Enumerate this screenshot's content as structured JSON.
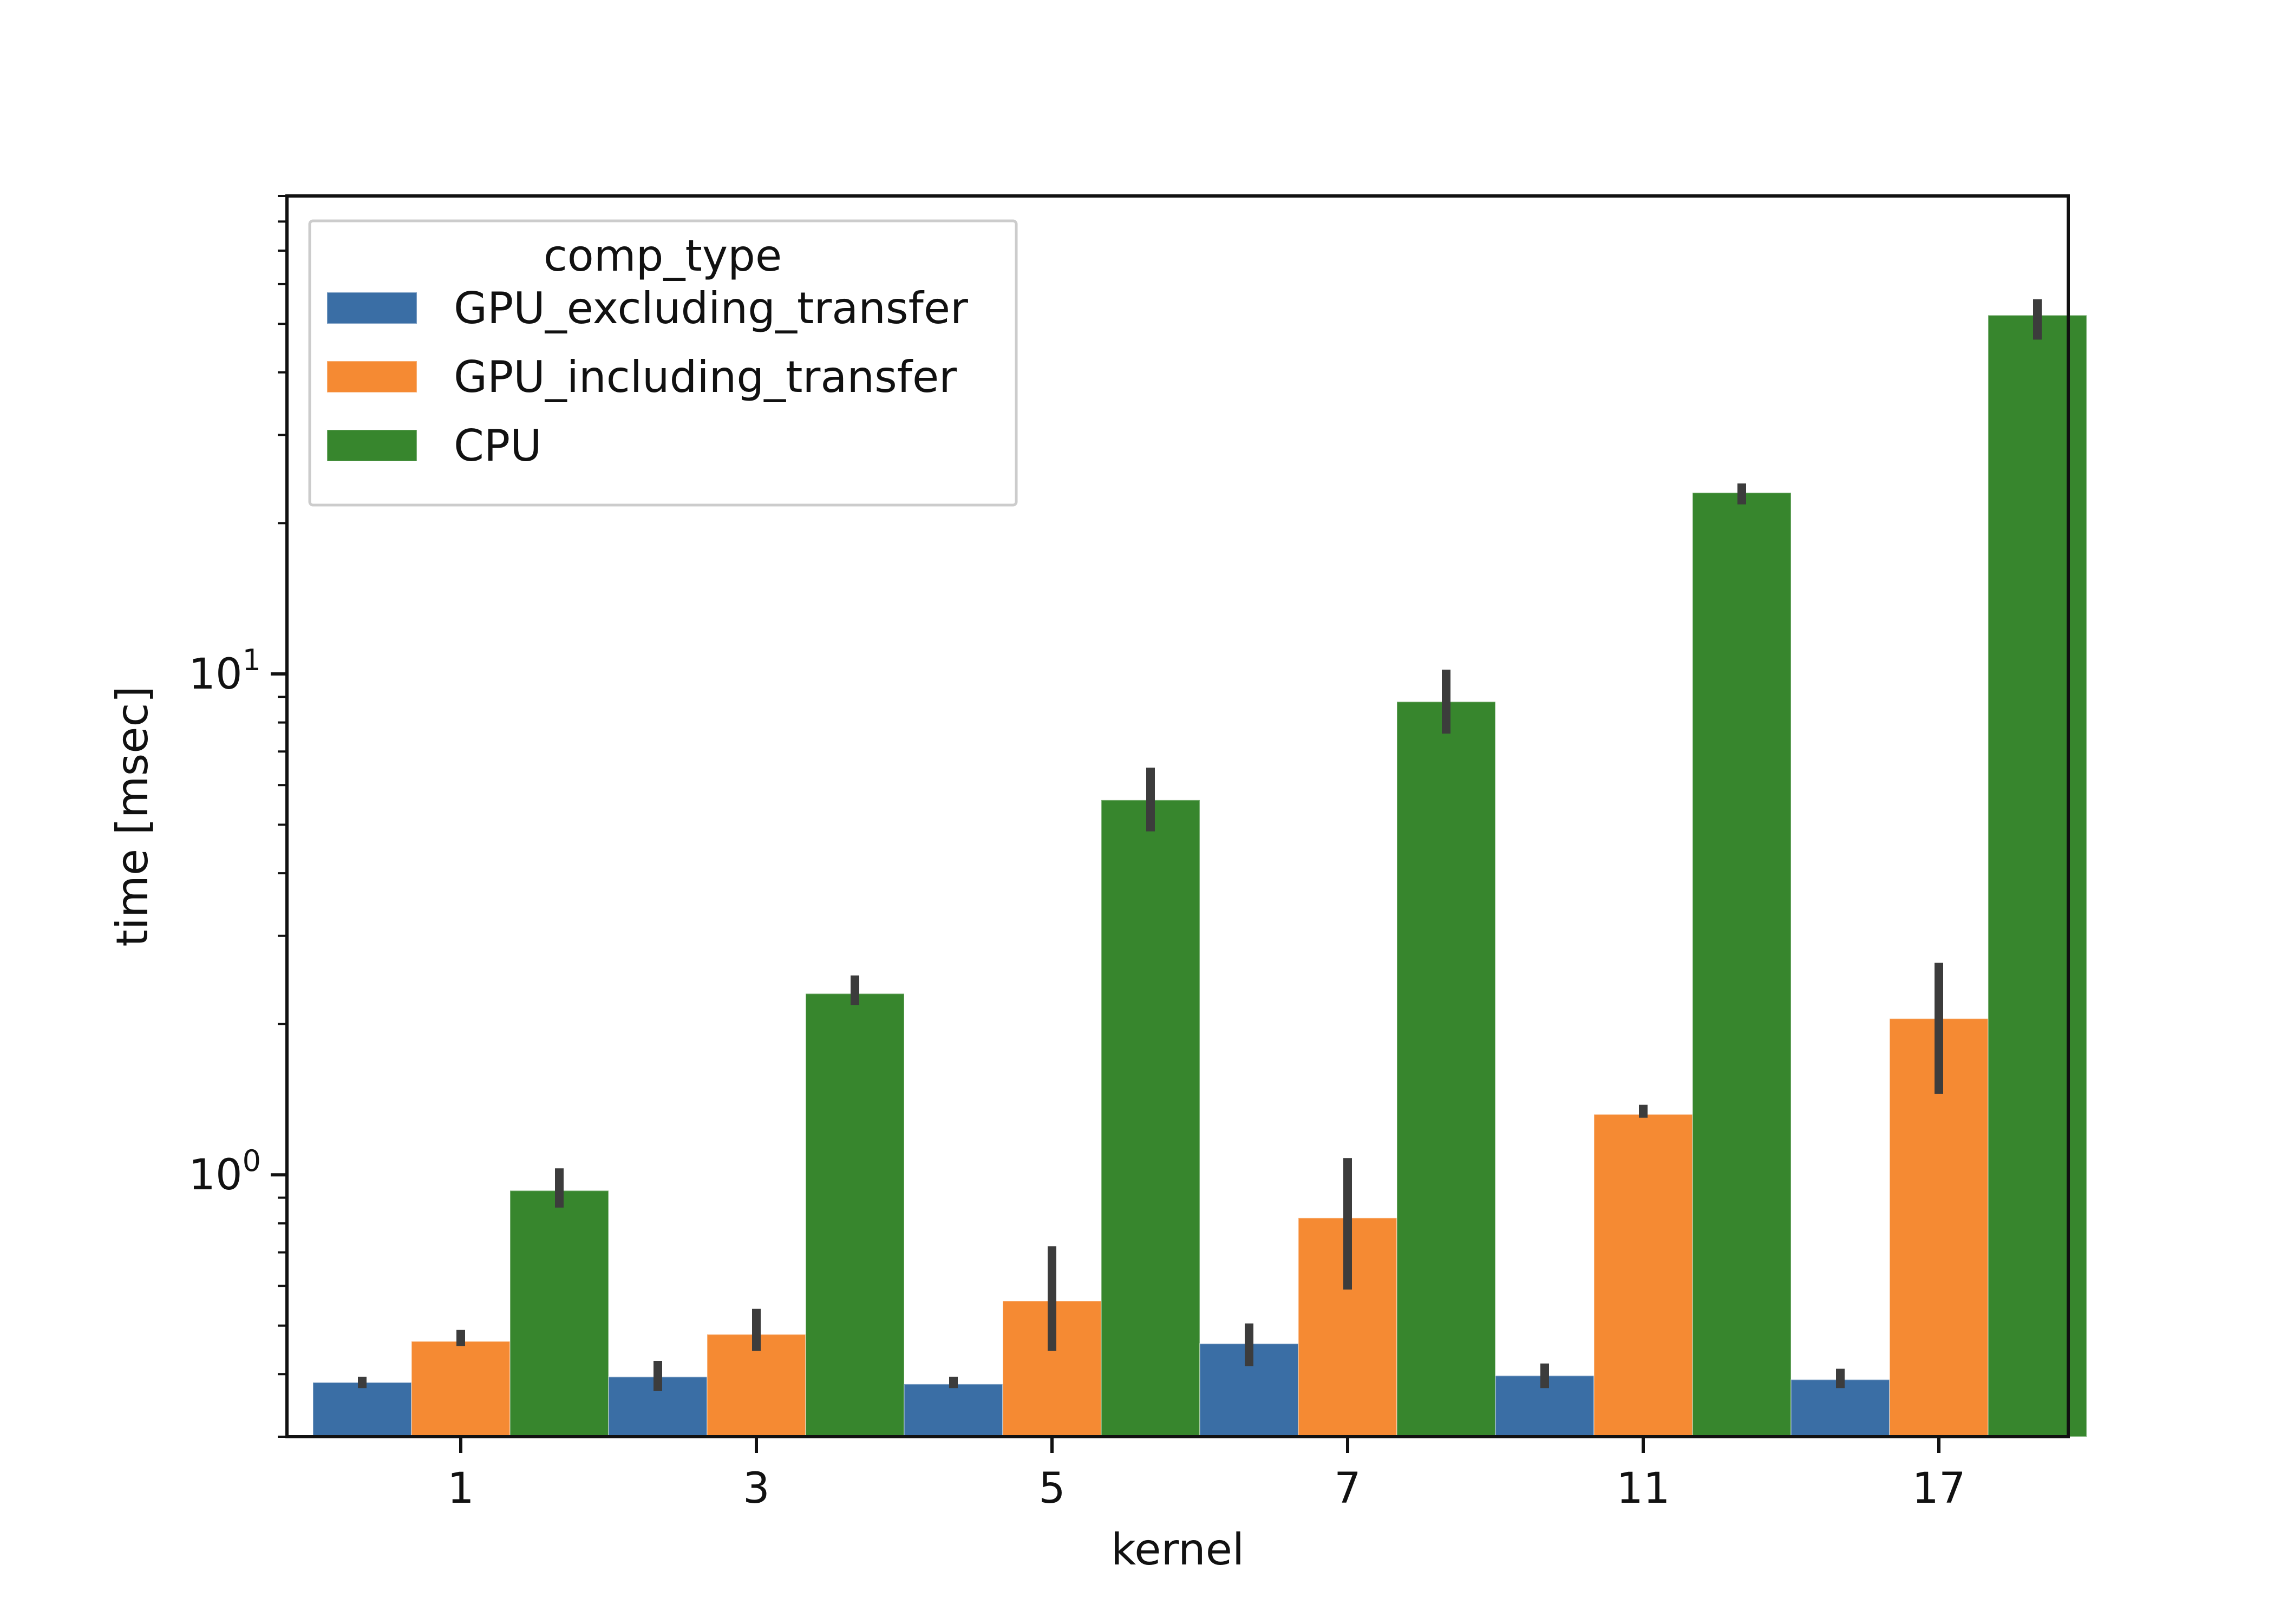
{
  "chart_data": {
    "type": "bar",
    "xlabel": "kernel",
    "ylabel": "time [msec]",
    "yscale": "log",
    "ylim": [
      0.3,
      90
    ],
    "y_ticks": [
      {
        "value": 1,
        "base": "10",
        "exp": "0"
      },
      {
        "value": 10,
        "base": "10",
        "exp": "1"
      }
    ],
    "categories": [
      "1",
      "3",
      "5",
      "7",
      "11",
      "17"
    ],
    "legend": {
      "title": "comp_type",
      "placement": "upper-left"
    },
    "grid": false,
    "series": [
      {
        "name": "GPU_excluding_transfer",
        "color": "#3a6ea5",
        "values": [
          0.385,
          0.395,
          0.382,
          0.46,
          0.397,
          0.39
        ],
        "error_low": [
          0.375,
          0.37,
          0.375,
          0.415,
          0.375,
          0.375
        ],
        "error_high": [
          0.395,
          0.425,
          0.395,
          0.505,
          0.42,
          0.41
        ]
      },
      {
        "name": "GPU_including_transfer",
        "color": "#f58a33",
        "values": [
          0.465,
          0.48,
          0.56,
          0.82,
          1.32,
          2.05
        ],
        "error_low": [
          0.455,
          0.445,
          0.445,
          0.59,
          1.3,
          1.45
        ],
        "error_high": [
          0.49,
          0.54,
          0.72,
          1.08,
          1.38,
          2.65
        ]
      },
      {
        "name": "CPU",
        "color": "#37862d",
        "values": [
          0.93,
          2.3,
          5.6,
          8.8,
          23.0,
          52.0
        ],
        "error_low": [
          0.86,
          2.18,
          4.85,
          7.6,
          21.8,
          46.5
        ],
        "error_high": [
          1.03,
          2.5,
          6.5,
          10.2,
          24.0,
          56.0
        ]
      }
    ]
  }
}
